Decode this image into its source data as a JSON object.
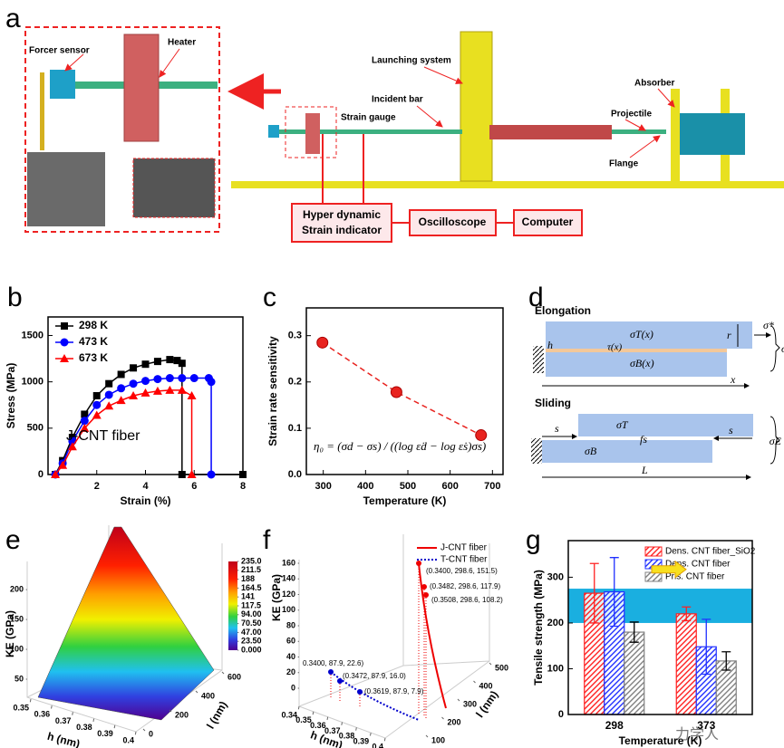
{
  "panel_labels": [
    "a",
    "b",
    "c",
    "d",
    "e",
    "f",
    "g"
  ],
  "setup": {
    "force_sensor": "Forcer sensor",
    "heater": "Heater",
    "launching": "Launching system",
    "incident_bar": "Incident bar",
    "strain_gauge": "Strain gauge",
    "projectile": "Projectile",
    "absorber": "Absorber",
    "flange": "Flange",
    "indicator": [
      "Hyper dynamic",
      "Strain indicator"
    ],
    "oscilloscope": "Oscilloscope",
    "computer": "Computer"
  },
  "chart_data": [
    {
      "type": "line",
      "xlabel": "Strain (%)",
      "ylabel": "Stress (MPa)",
      "annotation": "J-CNT fiber",
      "xlim": [
        0,
        8
      ],
      "xticks": [
        2,
        4,
        6,
        8
      ],
      "ylim": [
        0,
        1700
      ],
      "yticks": [
        0,
        500,
        1000,
        1500
      ],
      "legend": "upper left",
      "series": [
        {
          "name": "298 K",
          "color": "#000000",
          "marker": "square",
          "x": [
            0.3,
            0.6,
            1,
            1.5,
            2,
            2.5,
            3,
            3.5,
            4,
            4.5,
            5,
            5.3,
            5.5,
            5.5,
            8
          ],
          "values": [
            0,
            150,
            400,
            650,
            850,
            980,
            1080,
            1150,
            1190,
            1220,
            1240,
            1230,
            1200,
            0,
            0
          ]
        },
        {
          "name": "473 K",
          "color": "#0000ff",
          "marker": "circle",
          "x": [
            0.3,
            0.6,
            1,
            1.5,
            2,
            2.5,
            3,
            3.5,
            4,
            4.5,
            5,
            5.5,
            6,
            6.6,
            6.7,
            6.7
          ],
          "values": [
            0,
            120,
            360,
            580,
            750,
            860,
            930,
            980,
            1010,
            1030,
            1040,
            1040,
            1040,
            1040,
            1000,
            0
          ]
        },
        {
          "name": "673 K",
          "color": "#ff0000",
          "marker": "triangle",
          "x": [
            0.3,
            0.6,
            1,
            1.5,
            2,
            2.5,
            3,
            3.5,
            4,
            4.5,
            5,
            5.5,
            5.9,
            5.9
          ],
          "values": [
            0,
            100,
            300,
            500,
            640,
            740,
            800,
            850,
            880,
            900,
            910,
            910,
            850,
            0
          ]
        }
      ]
    },
    {
      "type": "scatter",
      "xlabel": "Temperature (K)",
      "ylabel": "Strain rate sensitivity",
      "annotation": "η₀ = (σd − σs) / ((log ε̇d − log ε̇s)σs)",
      "xlim": [
        260,
        725
      ],
      "xticks": [
        300,
        400,
        500,
        600,
        700
      ],
      "ylim": [
        0,
        0.36
      ],
      "yticks": [
        {
          "value": 0,
          "label": "0.0"
        },
        0.1,
        0.2,
        0.3
      ],
      "color": "#e8231f",
      "x": [
        298,
        473,
        673
      ],
      "values": [
        0.285,
        0.178,
        0.085
      ]
    },
    {
      "type": "bar",
      "xlabel": "Temperature (K)",
      "ylabel": "Tensile strength (MPa)",
      "categories": [
        "298",
        "373"
      ],
      "ylim": [
        0,
        380
      ],
      "yticks": [
        0,
        100,
        200,
        300
      ],
      "legend": "upper right",
      "band": [
        200,
        275
      ],
      "band_color": "#1aafe0",
      "series": [
        {
          "name": "Dens. CNT fiber_SiO2",
          "color": "#ff2020",
          "values": [
            265,
            220
          ],
          "errors": [
            65,
            15
          ]
        },
        {
          "name": "Dens. CNT fiber",
          "color": "#2030ff",
          "values": [
            268,
            148
          ],
          "errors": [
            75,
            60
          ]
        },
        {
          "name": "Pris. CNT fiber",
          "color": "#808080",
          "values": [
            180,
            117
          ],
          "errors": [
            22,
            20
          ]
        }
      ]
    }
  ],
  "model": {
    "elongation": {
      "title": "Elongation",
      "sigma_t": "σT(x)",
      "tau": "τ(x)",
      "sigma_b": "σB(x)",
      "sigma_star": "σ*",
      "r": "r",
      "h": "h",
      "x": "x",
      "sigma_e": "σE"
    },
    "sliding": {
      "title": "Sliding",
      "s_left": "s",
      "sigma_t": "σT",
      "fs": "fs",
      "s_right": "s",
      "sigma_b": "σB",
      "L": "L",
      "sigma_e": "σE"
    }
  },
  "surface": {
    "zlabel": "KE (GPa)",
    "xlabel": "h (nm)",
    "ylabel": "l (nm)",
    "zlim": [
      0,
      235
    ],
    "zticks": [
      50,
      100,
      150,
      200
    ],
    "xlim": [
      0.35,
      0.4
    ],
    "xticks": [
      0.35,
      0.36,
      0.37,
      0.38,
      0.39,
      0.4
    ],
    "ylim": [
      0,
      600
    ],
    "yticks": [
      0,
      200,
      400,
      600
    ],
    "colorbar": [
      {
        "value": 235,
        "label": "235.0"
      },
      211.5,
      188,
      164.5,
      141,
      117.5,
      {
        "value": 94,
        "label": "94.00"
      },
      {
        "value": 70.5,
        "label": "70.50"
      },
      {
        "value": 47,
        "label": "47.00"
      },
      {
        "value": 23.5,
        "label": "23.50"
      },
      {
        "value": 0,
        "label": "0.000"
      }
    ]
  },
  "curves3d": {
    "zlabel": "KE (GPa)",
    "xlabel": "h (nm)",
    "ylabel": "l (nm)",
    "zlim": [
      0,
      160
    ],
    "zticks": [
      0,
      20,
      40,
      60,
      80,
      100,
      120,
      140,
      160
    ],
    "xlim": [
      0.34,
      0.4
    ],
    "xticks": [
      0.34,
      0.35,
      0.36,
      0.37,
      0.38,
      0.39,
      0.4
    ],
    "ylim": [
      100,
      500
    ],
    "yticks": [
      100,
      200,
      300,
      400,
      500
    ],
    "legend": [
      "J-CNT fiber",
      "T-CNT fiber"
    ],
    "j_points": [
      "(0.3400, 298.6, 151.5)",
      "(0.3482, 298.6, 117.9)",
      "(0.3508, 298.6, 108.2)"
    ],
    "t_points": [
      "0.3400, 87.9, 22.6)",
      "(0.3472, 87.9, 16.0)",
      "(0.3619, 87.9, 7.9)"
    ]
  },
  "watermark": "力学人"
}
